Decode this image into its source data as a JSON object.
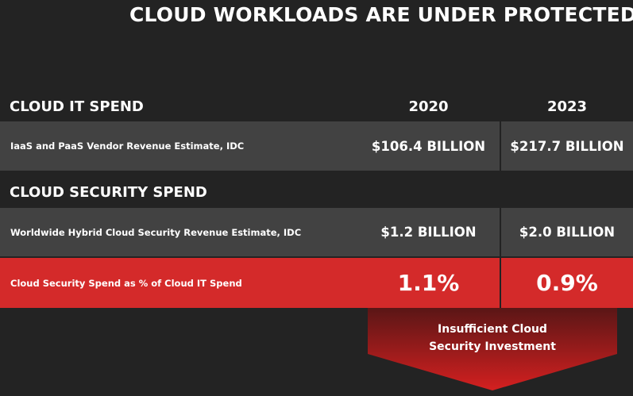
{
  "title": "CLOUD WORKLOADS ARE UNDER PROTECTED",
  "cloud_it": {
    "heading": "CLOUD IT SPEND",
    "year_2020": "2020",
    "year_2023": "2023",
    "row_label": "IaaS and PaaS Vendor Revenue Estimate, IDC",
    "val_2020": "$106.4 BILLION",
    "val_2023": "$217.7 BILLION"
  },
  "cloud_security": {
    "heading": "CLOUD SECURITY SPEND",
    "row_label": "Worldwide Hybrid Cloud Security Revenue Estimate, IDC",
    "val_2020": "$1.2 BILLION",
    "val_2023": "$2.0 BILLION"
  },
  "ratio": {
    "row_label": "Cloud Security Spend as % of Cloud IT Spend",
    "val_2020": "1.1%",
    "val_2023": "0.9%"
  },
  "callout": {
    "line1": "Insufficient Cloud",
    "line2": "Security Investment"
  },
  "colors": {
    "background": "#232323",
    "row_grey": "#424242",
    "accent_red": "#d42a2a"
  }
}
